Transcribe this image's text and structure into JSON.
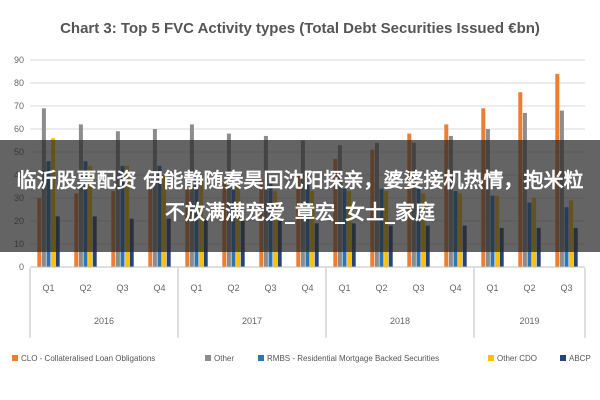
{
  "overlay": {
    "caption": "临沂股票配资 伊能静随秦昊回沈阳探亲，婆婆接机热情，抱米粒不放满满宠爱_章宏_女士_家庭"
  },
  "chart_data": {
    "type": "bar",
    "title": "Chart 3: Top 5 FVC Activity types (Total Debt Securities Issued €bn)",
    "xlabel": "",
    "ylabel": "",
    "ylim": [
      0,
      90
    ],
    "yticks": [
      0,
      10,
      20,
      30,
      40,
      50,
      60,
      70,
      80,
      90
    ],
    "grid": true,
    "legend_position": "bottom",
    "categories": [
      "Q1",
      "Q2",
      "Q3",
      "Q4",
      "Q1",
      "Q2",
      "Q3",
      "Q4",
      "Q1",
      "Q2",
      "Q3",
      "Q4",
      "Q1",
      "Q2",
      "Q3"
    ],
    "year_groups": [
      {
        "label": "2016",
        "count": 4
      },
      {
        "label": "2017",
        "count": 4
      },
      {
        "label": "2018",
        "count": 4
      },
      {
        "label": "2019",
        "count": 3
      }
    ],
    "series": [
      {
        "name": "CLO - Collateralised Loan Obligations",
        "color": "#ed7d31",
        "values": [
          30,
          32,
          33,
          34,
          35,
          37,
          38,
          40,
          47,
          51,
          58,
          62,
          69,
          76,
          84
        ]
      },
      {
        "name": "Other",
        "color": "#8c8c8c",
        "values": [
          69,
          62,
          59,
          60,
          62,
          58,
          57,
          55,
          53,
          54,
          54,
          57,
          60,
          67,
          68
        ]
      },
      {
        "name": "RMBS - Residential Mortgage Backed Securities",
        "color": "#2e75b6",
        "values": [
          46,
          46,
          44,
          44,
          40,
          38,
          37,
          36,
          34,
          34,
          34,
          33,
          31,
          28,
          26
        ]
      },
      {
        "name": "Other CDO",
        "color": "#ffc000",
        "values": [
          56,
          44,
          44,
          40,
          39,
          36,
          33,
          33,
          33,
          33,
          32,
          32,
          31,
          30,
          29
        ]
      },
      {
        "name": "ABCP",
        "color": "#264478",
        "values": [
          22,
          22,
          21,
          21,
          21,
          20,
          20,
          19,
          19,
          18,
          18,
          18,
          17,
          17,
          17
        ]
      }
    ]
  }
}
